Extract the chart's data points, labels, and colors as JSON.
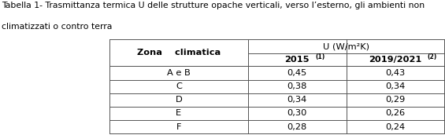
{
  "title_line1": "Tabella 1- Trasmittanza termica U delle strutture opache verticali, verso l’esterno, gli ambienti non",
  "title_line2": "climatizzati o contro terra",
  "col_zona": "Zona    climatica",
  "col_u": "U (W/m²K)",
  "col_2015": "2015",
  "col_2015_sup": "(1)",
  "col_2019": "2019/2021",
  "col_2019_sup": "(2)",
  "rows": [
    {
      "zona": "A e B",
      "v2015": "0,45",
      "v2019": "0,43"
    },
    {
      "zona": "C",
      "v2015": "0,38",
      "v2019": "0,34"
    },
    {
      "zona": "D",
      "v2015": "0,34",
      "v2019": "0,29"
    },
    {
      "zona": "E",
      "v2015": "0,30",
      "v2019": "0,26"
    },
    {
      "zona": "F",
      "v2015": "0,28",
      "v2019": "0,24"
    }
  ],
  "title_fontsize": 7.8,
  "header_fontsize": 8.2,
  "data_fontsize": 8.2,
  "border_lw": 0.7,
  "line_color": "#555555"
}
